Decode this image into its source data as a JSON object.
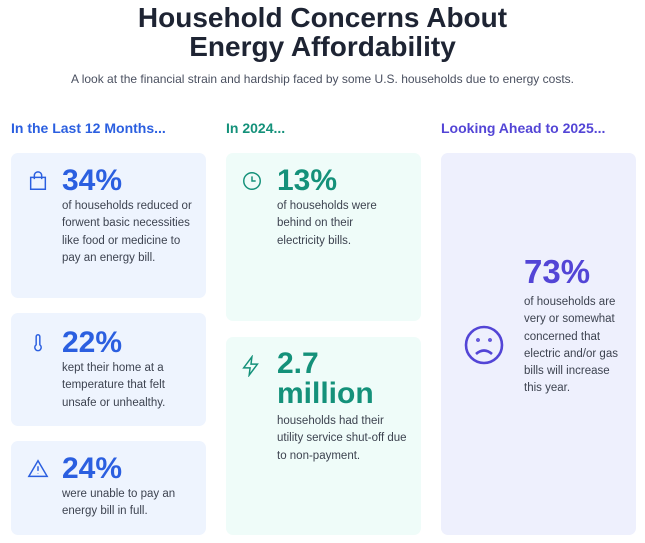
{
  "title_line1": "Household Concerns About",
  "title_line2": "Energy Affordability",
  "subtitle": "A look at the financial strain and hardship faced by some U.S. households due to energy costs.",
  "colors": {
    "blue": "#2b5fe0",
    "teal": "#14917a",
    "purple": "#5345d6"
  },
  "columns": [
    {
      "heading": "In the Last 12 Months...",
      "cards": [
        {
          "icon": "shopping-bag-icon",
          "value": "34%",
          "text": "of households reduced or forwent basic necessities like food or medicine to pay an energy bill."
        },
        {
          "icon": "thermometer-icon",
          "value": "22%",
          "text": "kept their home at a temperature that felt unsafe or unhealthy."
        },
        {
          "icon": "warning-icon",
          "value": "24%",
          "text": "were unable to pay an energy bill in full."
        }
      ]
    },
    {
      "heading": "In 2024...",
      "cards": [
        {
          "icon": "clock-icon",
          "value": "13%",
          "text": "of households were behind on their electricity bills."
        },
        {
          "icon": "lightning-icon",
          "value": "2.7 million",
          "text": "households had their utility service shut-off due to non-payment."
        }
      ]
    },
    {
      "heading": "Looking Ahead to 2025...",
      "cards": [
        {
          "icon": "sad-face-icon",
          "value": "73%",
          "text": "of households are very or somewhat concerned that electric and/or gas bills will increase this year."
        }
      ]
    }
  ]
}
